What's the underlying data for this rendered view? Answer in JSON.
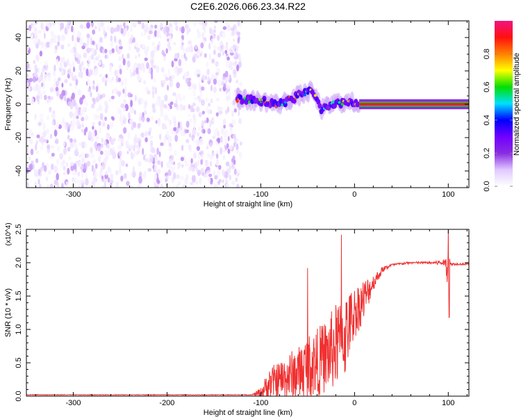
{
  "title": "C2E6.2026.066.23.34.R22",
  "chart_data": [
    {
      "type": "heatmap",
      "title": "C2E6.2026.066.23.34.R22",
      "xlabel": "Height of straight line (km)",
      "ylabel": "Frequency (Hz)",
      "xlim": [
        -350,
        122
      ],
      "ylim": [
        -50,
        50
      ],
      "xticks": [
        -300,
        -200,
        -100,
        0,
        100
      ],
      "xtick_labels": [
        "-300",
        "-200",
        "-100",
        "0",
        "100"
      ],
      "yticks": [
        -40,
        -20,
        0,
        20,
        40
      ],
      "ytick_labels": [
        "-40",
        "-20",
        "0",
        "20",
        "40"
      ],
      "colorbar": {
        "label": "Normalized spectral amplitude",
        "range": [
          0,
          1
        ],
        "ticks": [
          0.0,
          0.2,
          0.4,
          0.6,
          0.8
        ],
        "tick_labels": [
          "0.0",
          "0.2",
          "0.4",
          "0.6",
          "0.8"
        ],
        "colormap": [
          "#ffffff",
          "#e0c8ff",
          "#8a2be2",
          "#7000ff",
          "#0000ff",
          "#00e0ff",
          "#00e000",
          "#ffff00",
          "#ff8000",
          "#ff1010",
          "#f01480"
        ]
      },
      "regions": [
        {
          "name": "noise",
          "x_range": [
            -350,
            -125
          ],
          "freq_range": [
            -50,
            50
          ],
          "amplitude": [
            0.02,
            0.15
          ]
        },
        {
          "name": "signal-band",
          "x_range": [
            -125,
            5
          ],
          "center_freq_hz": [
            [
              -125,
              3
            ],
            [
              -100,
              2
            ],
            [
              -80,
              0
            ],
            [
              -60,
              5
            ],
            [
              -45,
              8
            ],
            [
              -35,
              -3
            ],
            [
              -20,
              1
            ],
            [
              0,
              1
            ],
            [
              5,
              0
            ]
          ],
          "amplitude": [
            0.3,
            0.8
          ]
        },
        {
          "name": "steady-tone",
          "x_range": [
            5,
            122
          ],
          "freq_hz": 0,
          "amplitude": 0.95
        }
      ]
    },
    {
      "type": "line",
      "xlabel": "Height of straight line (km)",
      "ylabel": "SNR (10 * v/v)",
      "y_multiplier": "(x10^4)",
      "xlim": [
        -350,
        122
      ],
      "ylim": [
        0,
        2.5
      ],
      "xticks": [
        -300,
        -200,
        -100,
        0,
        100
      ],
      "xtick_labels": [
        "-300",
        "-200",
        "-100",
        "0",
        "100"
      ],
      "yticks": [
        0.0,
        0.5,
        1.0,
        1.5,
        2.0,
        2.5
      ],
      "ytick_labels": [
        "0.0",
        "0.5",
        "1.0",
        "1.5",
        "2.0",
        "2.5"
      ],
      "color": "#f03030",
      "series": [
        {
          "name": "SNR",
          "x": [
            -350,
            -110,
            -100,
            -90,
            -80,
            -70,
            -60,
            -50,
            -40,
            -30,
            -20,
            -10,
            -5,
            0,
            10,
            20,
            30,
            40,
            60,
            80,
            97,
            100,
            102,
            110,
            122
          ],
          "y": [
            0.02,
            0.02,
            0.05,
            0.2,
            0.25,
            0.3,
            0.35,
            0.45,
            0.5,
            0.6,
            0.75,
            0.9,
            1.1,
            1.25,
            1.45,
            1.7,
            1.9,
            1.97,
            2.0,
            2.0,
            2.0,
            2.0,
            1.98,
            1.98,
            1.98
          ],
          "noise_amplitude": [
            0.0,
            0.0,
            0.1,
            0.3,
            0.35,
            0.45,
            0.5,
            0.6,
            0.65,
            0.7,
            0.8,
            0.8,
            0.6,
            0.5,
            0.4,
            0.15,
            0.06,
            0.02,
            0.02,
            0.02,
            0.06,
            0.6,
            0.03,
            0.02,
            0.02
          ],
          "peaks": [
            {
              "x": -14,
              "y": 2.42
            },
            {
              "x": -50,
              "y": 1.92
            },
            {
              "x": 100,
              "y": 2.5
            },
            {
              "x": 101,
              "y": 1.18
            }
          ]
        }
      ]
    }
  ]
}
